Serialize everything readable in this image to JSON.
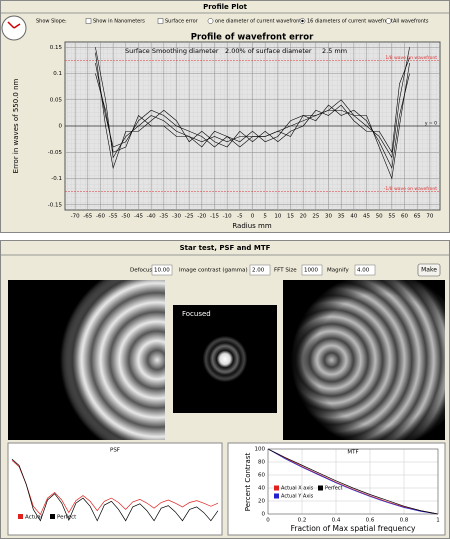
{
  "profile_panel": {
    "title": "Profile Plot",
    "options": [
      {
        "label": "Show Slope:",
        "kind": "label",
        "checked": false
      },
      {
        "label": "Show in Nanometers",
        "kind": "checkbox",
        "checked": false
      },
      {
        "label": "Surface error",
        "kind": "checkbox",
        "checked": false
      },
      {
        "label": "one diameter of current wavefront",
        "kind": "radio",
        "checked": false
      },
      {
        "label": "16 diameters of current wavefront",
        "kind": "radio",
        "checked": true
      },
      {
        "label": "All wavefronts",
        "kind": "radio",
        "checked": false
      }
    ]
  },
  "star_panel": {
    "title": "Star test, PSF and MTF",
    "controls": [
      {
        "label": "Defocus:",
        "value": "10.00"
      },
      {
        "label": "Image contrast (gamma)",
        "value": "2.00"
      },
      {
        "label": "FFT Size",
        "value": "1000"
      },
      {
        "label": "Magnify",
        "value": "4.00"
      }
    ],
    "button": "Make",
    "focused_label": "Focused"
  },
  "chart_data": [
    {
      "type": "line",
      "title": "Profile of wavefront error",
      "x_label": "Radius mm",
      "y_label": "Error in waves of 550.0 nm",
      "annotations": [
        "Surface Smoothing diameter",
        "2.00% of surface diameter",
        "2.5 mm"
      ],
      "reference_lines": [
        {
          "value": 0.125,
          "label": "1/8 wave on wavefront"
        },
        {
          "value": -0.125,
          "label": "-1/8 wave on wavefront"
        },
        {
          "value": 0,
          "label": "y = 0"
        }
      ],
      "x": [
        -62,
        -58,
        -55,
        -50,
        -45,
        -40,
        -35,
        -30,
        -25,
        -20,
        -15,
        -10,
        -5,
        0,
        5,
        10,
        15,
        20,
        25,
        30,
        35,
        40,
        45,
        50,
        55,
        58,
        62
      ],
      "series": [
        {
          "color": "#000000",
          "values": [
            0.15,
            0.05,
            -0.06,
            -0.02,
            0.0,
            0.02,
            0.01,
            -0.01,
            -0.02,
            -0.03,
            -0.02,
            -0.03,
            -0.02,
            -0.02,
            -0.02,
            -0.01,
            0.0,
            0.01,
            0.02,
            0.03,
            0.03,
            0.02,
            0.0,
            -0.02,
            -0.06,
            0.05,
            0.15
          ]
        },
        {
          "color": "#000000",
          "values": [
            0.12,
            0.02,
            -0.04,
            -0.03,
            0.01,
            0.03,
            0.02,
            0.0,
            -0.01,
            -0.02,
            -0.04,
            -0.02,
            -0.03,
            -0.01,
            -0.03,
            -0.02,
            0.01,
            0.02,
            0.01,
            0.04,
            0.02,
            0.03,
            0.01,
            -0.03,
            -0.08,
            0.02,
            0.1
          ]
        },
        {
          "color": "#000000",
          "values": [
            0.14,
            0.0,
            -0.08,
            -0.01,
            -0.01,
            0.01,
            0.03,
            0.01,
            -0.03,
            -0.01,
            -0.03,
            -0.04,
            -0.01,
            -0.03,
            -0.01,
            -0.03,
            -0.01,
            0.0,
            0.03,
            0.02,
            0.04,
            0.01,
            -0.01,
            -0.01,
            -0.05,
            0.08,
            0.13
          ]
        },
        {
          "color": "#000000",
          "values": [
            0.1,
            0.03,
            -0.05,
            -0.04,
            0.02,
            0.0,
            0.0,
            -0.02,
            -0.02,
            -0.04,
            -0.01,
            -0.02,
            -0.04,
            -0.02,
            -0.02,
            -0.01,
            -0.02,
            0.02,
            0.02,
            0.03,
            0.05,
            0.02,
            0.02,
            -0.04,
            -0.1,
            0.0,
            0.12
          ]
        }
      ],
      "xlim": [
        -74,
        74
      ],
      "ylim": [
        -0.16,
        0.16
      ],
      "xticks": [
        -70,
        -65,
        -60,
        -55,
        -50,
        -45,
        -40,
        -35,
        -30,
        -25,
        -20,
        -15,
        -10,
        -5,
        0,
        5,
        10,
        15,
        20,
        25,
        30,
        35,
        40,
        45,
        50,
        55,
        60,
        65,
        70
      ],
      "yticks": [
        -0.15,
        -0.1,
        -0.05,
        0,
        0.05,
        0.1,
        0.15
      ],
      "grid": true
    },
    {
      "type": "line",
      "title": "PSF",
      "ylim": [
        0,
        1.05
      ],
      "series": [
        {
          "name": "Actual",
          "color": "#e0201c",
          "values": [
            0.98,
            0.88,
            0.6,
            0.25,
            0.12,
            0.38,
            0.47,
            0.35,
            0.15,
            0.34,
            0.42,
            0.33,
            0.18,
            0.33,
            0.38,
            0.31,
            0.2,
            0.32,
            0.36,
            0.3,
            0.22,
            0.31,
            0.35,
            0.3,
            0.24,
            0.31,
            0.34,
            0.3,
            0.25,
            0.3
          ]
        },
        {
          "name": "Perfect",
          "color": "#000000",
          "values": [
            1.0,
            0.9,
            0.6,
            0.2,
            0.02,
            0.35,
            0.45,
            0.3,
            0.03,
            0.3,
            0.38,
            0.25,
            0.02,
            0.27,
            0.33,
            0.2,
            0.02,
            0.24,
            0.29,
            0.18,
            0.02,
            0.22,
            0.26,
            0.16,
            0.02,
            0.2,
            0.24,
            0.15,
            0.02,
            0.18
          ]
        }
      ]
    },
    {
      "type": "line",
      "title": "MTF",
      "x_label": "Fraction of Max spatial frequency",
      "y_label": "Percent Contrast",
      "x": [
        0,
        0.1,
        0.2,
        0.3,
        0.4,
        0.5,
        0.6,
        0.7,
        0.8,
        0.9,
        1
      ],
      "series": [
        {
          "name": "Actual X axis",
          "color": "#e0201c",
          "values": [
            100,
            86,
            73,
            61,
            49,
            38,
            28,
            19,
            11,
            5,
            0
          ]
        },
        {
          "name": "Actual Y Axis",
          "color": "#2020d0",
          "values": [
            100,
            85,
            72,
            60,
            48,
            37,
            27,
            18,
            10,
            4,
            0
          ]
        },
        {
          "name": "Perfect",
          "color": "#000000",
          "values": [
            100,
            87,
            75,
            63,
            51,
            40,
            30,
            21,
            12,
            5,
            0
          ]
        }
      ],
      "xlim": [
        0,
        1
      ],
      "ylim": [
        0,
        100
      ],
      "xticks": [
        0,
        0.2,
        0.4,
        0.6,
        0.8,
        1
      ],
      "yticks": [
        0,
        20,
        40,
        60,
        80,
        100
      ],
      "grid": true
    }
  ]
}
